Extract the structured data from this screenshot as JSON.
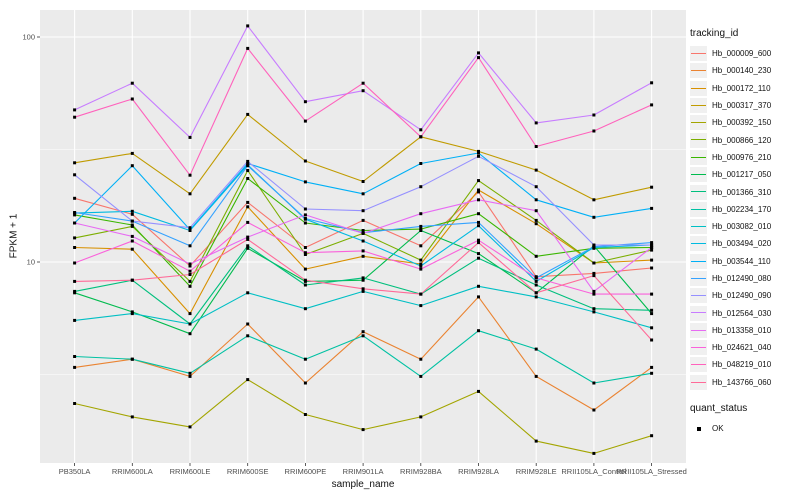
{
  "figure": {
    "background": "#FFFFFF",
    "panel_background": "#EBEBEB",
    "grid_major_color": "#FFFFFF",
    "grid_minor_color": "#FFFFFF",
    "tick_mark_color": "#333333",
    "axis_text_color": "#4D4D4D",
    "point_marker_color": "#000000"
  },
  "axes": {
    "y_title": "FPKM + 1",
    "x_title": "sample_name",
    "y_tick_labels": [
      "100",
      "10"
    ],
    "y_tick_values": [
      100,
      10
    ],
    "y_minor_values": [
      31.62,
      3.162
    ]
  },
  "legend": {
    "tracking_title": "tracking_id",
    "quant_title": "quant_status",
    "quant_items": [
      {
        "label": "OK",
        "marker": "black-square"
      }
    ]
  },
  "chart_data": {
    "type": "line",
    "title": "",
    "xlabel": "sample_name",
    "ylabel": "FPKM + 1",
    "y_scale": "log10",
    "ylim": [
      1.28,
      132
    ],
    "grid": true,
    "legend_position": "right",
    "point_marker": "small black square (quant_status = OK)",
    "x_categories": [
      "PB350LA",
      "RRIM600LA",
      "RRIM600LE",
      "RRIM600SE",
      "RRIM600PE",
      "RRIM901LA",
      "RRIM928BA",
      "RRIM928LA",
      "RRIM928LE",
      "RRII105LA_Control",
      "RRII105LA_Stressed"
    ],
    "series": [
      {
        "name": "Hb_000009_600",
        "color": "#F8766D",
        "values": [
          19.2,
          16.3,
          9.6,
          18.4,
          11.6,
          15.3,
          11.8,
          20.5,
          8.6,
          8.9,
          9.4
        ]
      },
      {
        "name": "Hb_000140_230",
        "color": "#EA8331",
        "values": [
          3.4,
          3.7,
          3.1,
          5.3,
          2.9,
          4.9,
          3.7,
          7.0,
          3.1,
          2.2,
          3.4
        ]
      },
      {
        "name": "Hb_000172_110",
        "color": "#D89000",
        "values": [
          11.6,
          11.4,
          5.9,
          17.6,
          9.3,
          10.6,
          9.8,
          20.9,
          14.8,
          9.9,
          10.2
        ]
      },
      {
        "name": "Hb_000317_370",
        "color": "#C09B00",
        "values": [
          27.6,
          30.4,
          20.1,
          45.3,
          28.1,
          22.8,
          36.0,
          31.0,
          25.6,
          18.9,
          21.5
        ]
      },
      {
        "name": "Hb_000392_150",
        "color": "#A3A500",
        "values": [
          2.35,
          2.05,
          1.85,
          3.0,
          2.1,
          1.8,
          2.05,
          2.66,
          1.6,
          1.41,
          1.69
        ]
      },
      {
        "name": "Hb_000866_120",
        "color": "#7CAE00",
        "values": [
          12.8,
          14.4,
          8.2,
          25.5,
          10.8,
          13.4,
          10.2,
          23.0,
          15.3,
          9.9,
          11.3
        ]
      },
      {
        "name": "Hb_000976_210",
        "color": "#39B600",
        "values": [
          16.2,
          14.6,
          7.8,
          23.5,
          14.9,
          13.8,
          14.0,
          16.4,
          10.6,
          11.5,
          11.6
        ]
      },
      {
        "name": "Hb_001217_050",
        "color": "#00BB4E",
        "values": [
          7.3,
          6.0,
          4.8,
          11.5,
          8.2,
          8.3,
          13.8,
          10.9,
          7.3,
          11.8,
          5.9
        ]
      },
      {
        "name": "Hb_001366_310",
        "color": "#00BF7D",
        "values": [
          7.4,
          8.3,
          5.3,
          11.8,
          7.9,
          8.5,
          7.2,
          10.4,
          7.9,
          6.2,
          6.1
        ]
      },
      {
        "name": "Hb_002234_170",
        "color": "#00C1A3",
        "values": [
          3.8,
          3.7,
          3.2,
          4.7,
          3.7,
          4.7,
          3.1,
          4.95,
          4.1,
          2.9,
          3.2
        ]
      },
      {
        "name": "Hb_003082_010",
        "color": "#00BFC4",
        "values": [
          5.5,
          5.9,
          5.3,
          7.3,
          6.2,
          7.4,
          6.4,
          7.8,
          7.0,
          6.0,
          5.1
        ]
      },
      {
        "name": "Hb_003494_020",
        "color": "#00BAE0",
        "values": [
          16.5,
          16.8,
          13.8,
          27.0,
          15.5,
          12.4,
          9.6,
          14.5,
          8.2,
          11.6,
          11.9
        ]
      },
      {
        "name": "Hb_003544_110",
        "color": "#00B0F6",
        "values": [
          14.9,
          26.8,
          13.9,
          27.4,
          22.7,
          20.1,
          27.4,
          30.5,
          18.9,
          15.8,
          17.3
        ]
      },
      {
        "name": "Hb_012490_080",
        "color": "#35A2FF",
        "values": [
          16.6,
          15.2,
          11.8,
          26.8,
          15.6,
          13.5,
          14.4,
          15.0,
          8.5,
          11.7,
          12.2
        ]
      },
      {
        "name": "Hb_012490_090",
        "color": "#9590FF",
        "values": [
          24.4,
          15.2,
          14.2,
          28.0,
          17.2,
          16.9,
          21.6,
          29.5,
          21.6,
          11.9,
          11.9
        ]
      },
      {
        "name": "Hb_012564_030",
        "color": "#C77CFF",
        "values": [
          47.4,
          62.3,
          35.8,
          112.0,
          51.6,
          57.7,
          38.7,
          85.0,
          41.5,
          45.0,
          62.6
        ]
      },
      {
        "name": "Hb_013358_010",
        "color": "#E76BF3",
        "values": [
          14.9,
          13.0,
          9.8,
          12.9,
          16.2,
          13.4,
          16.4,
          18.9,
          16.9,
          7.4,
          11.6
        ]
      },
      {
        "name": "Hb_024621_040",
        "color": "#FA62DB",
        "values": [
          9.9,
          12.4,
          9.1,
          15.0,
          11.0,
          11.2,
          9.3,
          12.5,
          8.5,
          7.2,
          7.2
        ]
      },
      {
        "name": "Hb_048219_010",
        "color": "#FF62BC",
        "values": [
          44.0,
          53.0,
          24.3,
          89.0,
          42.3,
          62.3,
          36.0,
          81.0,
          32.6,
          38.2,
          49.9
        ]
      },
      {
        "name": "Hb_143766_060",
        "color": "#FF6A98",
        "values": [
          8.2,
          8.3,
          8.8,
          12.6,
          8.3,
          7.6,
          7.2,
          12.2,
          7.3,
          8.7,
          4.5
        ]
      }
    ]
  }
}
